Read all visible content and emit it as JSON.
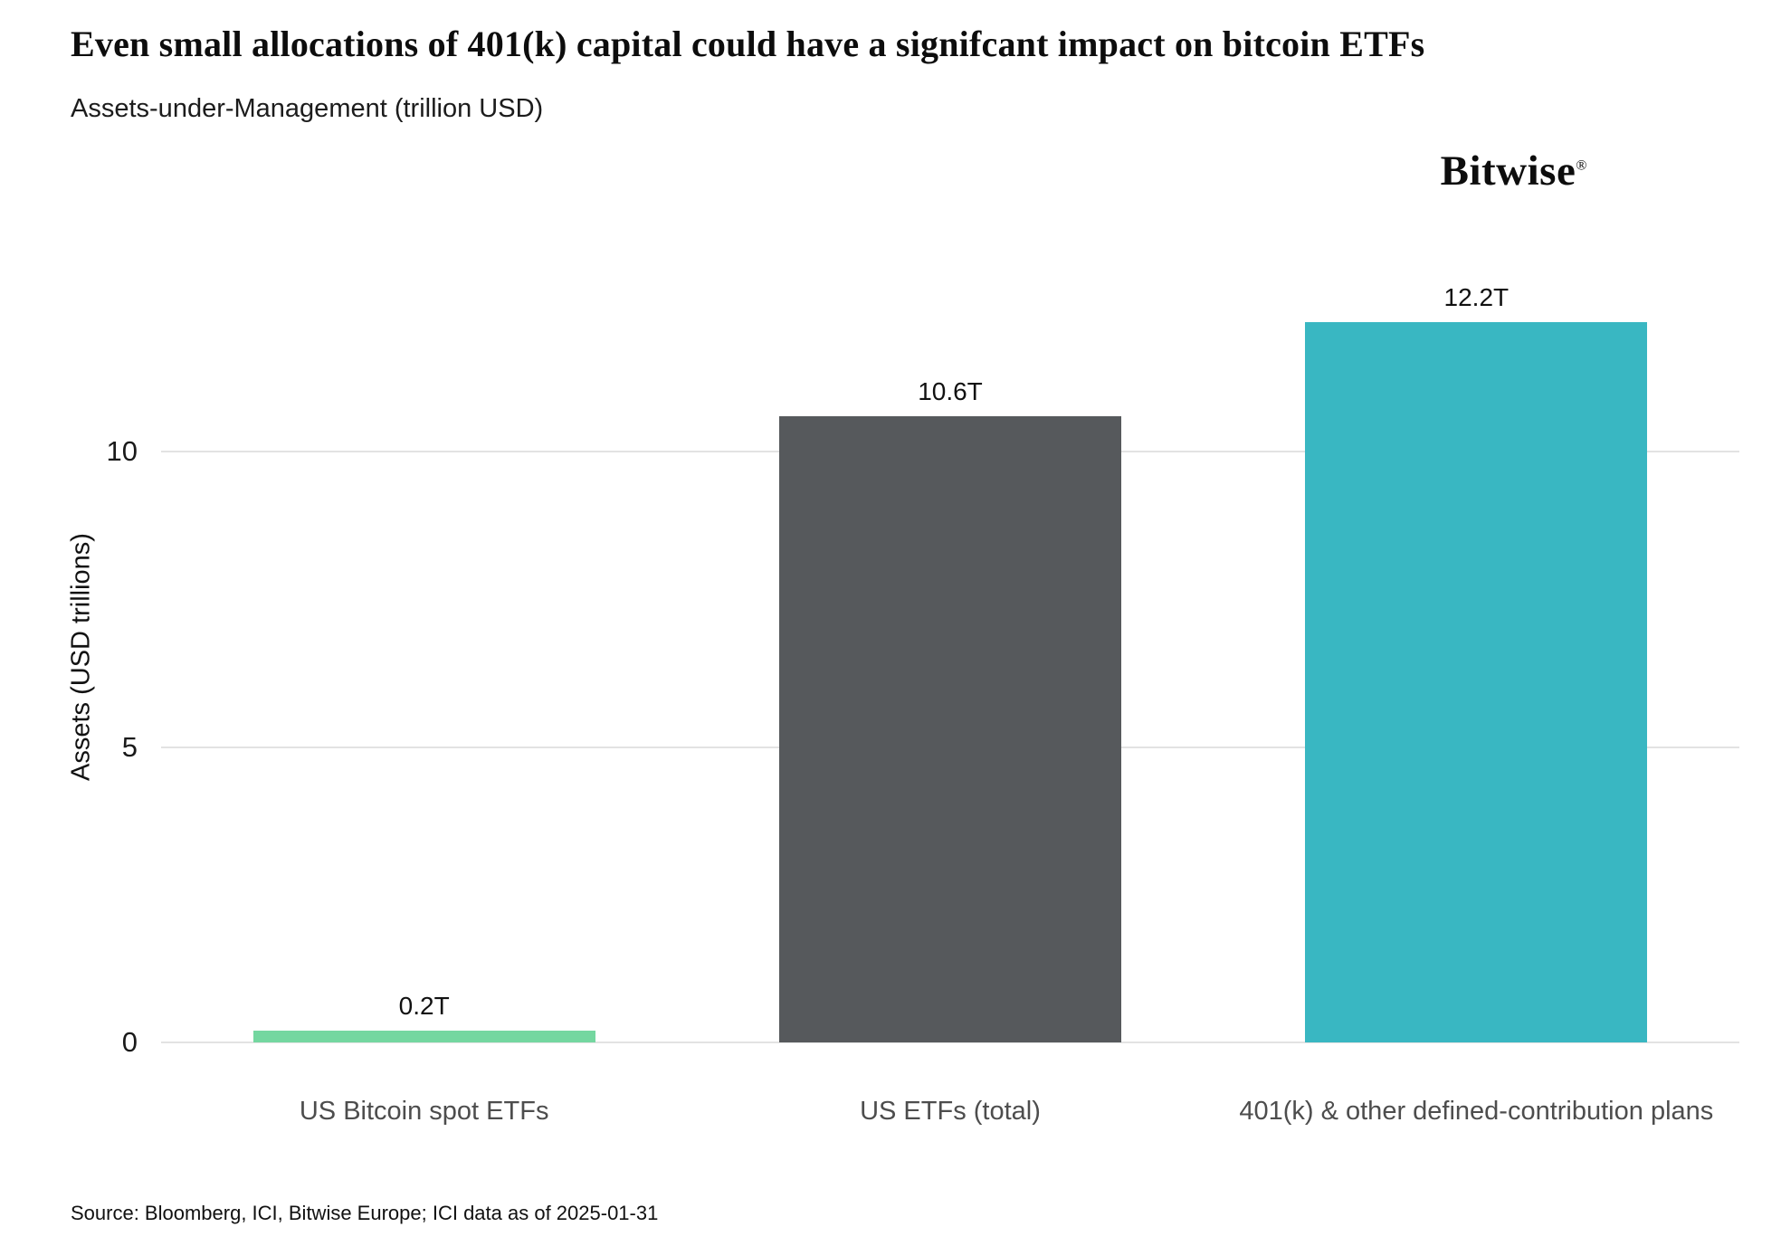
{
  "page": {
    "title": "Even small allocations of 401(k) capital could have a signifcant impact on bitcoin ETFs",
    "subtitle": "Assets-under-Management (trillion USD)",
    "logo_text": "Bitwise",
    "logo_mark": "®",
    "source": "Source: Bloomberg, ICI, Bitwise Europe; ICI data as of 2025-01-31"
  },
  "chart_data": {
    "type": "bar",
    "title": "Even small allocations of 401(k) capital could have a signifcant impact on bitcoin ETFs",
    "subtitle": "Assets-under-Management (trillion USD)",
    "xlabel": "",
    "ylabel": "Assets (USD trillions)",
    "categories": [
      "US Bitcoin spot ETFs",
      "US ETFs (total)",
      "401(k) & other defined-contribution plans"
    ],
    "values": [
      0.2,
      10.6,
      12.2
    ],
    "value_labels": [
      "0.2T",
      "10.6T",
      "12.2T"
    ],
    "bar_colors": [
      "#74d7a0",
      "#56595c",
      "#39b7c2"
    ],
    "yticks": [
      0,
      5,
      10
    ],
    "ylim": [
      0,
      13.05
    ],
    "grid": true,
    "legend": "none",
    "background_color": "#ffffff",
    "gridline_color": "#e3e3e3"
  }
}
